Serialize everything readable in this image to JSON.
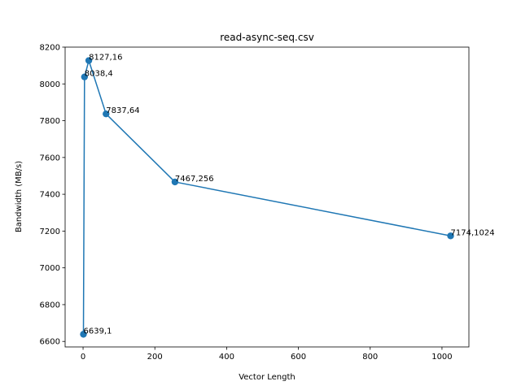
{
  "chart_data": {
    "type": "line",
    "title": "read-async-seq.csv",
    "xlabel": "Vector Length",
    "ylabel": "Bandwidth (MB/s)",
    "xlim": [
      -50,
      1075
    ],
    "ylim": [
      6570,
      8200
    ],
    "xticks": [
      0,
      200,
      400,
      600,
      800,
      1000
    ],
    "yticks": [
      6600,
      6800,
      7000,
      7200,
      7400,
      7600,
      7800,
      8000,
      8200
    ],
    "grid": false,
    "legend": "none",
    "series": [
      {
        "color": "#1f77b4",
        "marker": "circle",
        "x": [
          1,
          4,
          16,
          64,
          256,
          1024
        ],
        "y": [
          6639,
          8038,
          8127,
          7837,
          7467,
          7174
        ],
        "labels": [
          "6639,1",
          "8038,4",
          "8127,16",
          "7837,64",
          "7467,256",
          "7174,1024"
        ]
      }
    ]
  }
}
